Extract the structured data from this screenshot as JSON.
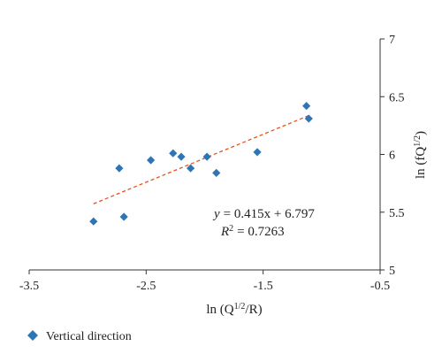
{
  "chart_data": {
    "type": "scatter",
    "xlabel_base": "ln (Q",
    "xlabel_sup": "1/2",
    "xlabel_tail": "/R)",
    "ylabel_base": "ln (fQ",
    "ylabel_sup": "1/2",
    "ylabel_tail": ")",
    "xlim": [
      -3.5,
      -0.5
    ],
    "ylim": [
      5,
      7
    ],
    "xticks": [
      "-3.5",
      "-2.5",
      "-1.5",
      "-0.5"
    ],
    "xtick_values": [
      -3.5,
      -2.5,
      -1.5,
      -0.5
    ],
    "yticks": [
      "5",
      "5.5",
      "6",
      "6.5",
      "7"
    ],
    "ytick_values": [
      5,
      5.5,
      6,
      6.5,
      7
    ],
    "y_axis_position": "right",
    "grid": false,
    "legend_position": "bottom-left",
    "series": [
      {
        "name": "Vertical direction",
        "color": "#2E75B6",
        "marker": "diamond",
        "x": [
          -2.95,
          -2.73,
          -2.69,
          -2.46,
          -2.27,
          -2.2,
          -2.12,
          -1.98,
          -1.9,
          -1.55,
          -1.13,
          -1.11
        ],
        "y": [
          5.42,
          5.88,
          5.46,
          5.95,
          6.01,
          5.98,
          5.88,
          5.98,
          5.84,
          6.02,
          6.42,
          6.31
        ]
      }
    ],
    "trendline": {
      "color": "#E8501E",
      "style": "dashed",
      "slope": 0.415,
      "intercept": 6.797,
      "x_range": [
        -2.95,
        -1.11
      ]
    },
    "equation_text": "= 0.415x + 6.797",
    "r2_text": "= 0.7263"
  }
}
